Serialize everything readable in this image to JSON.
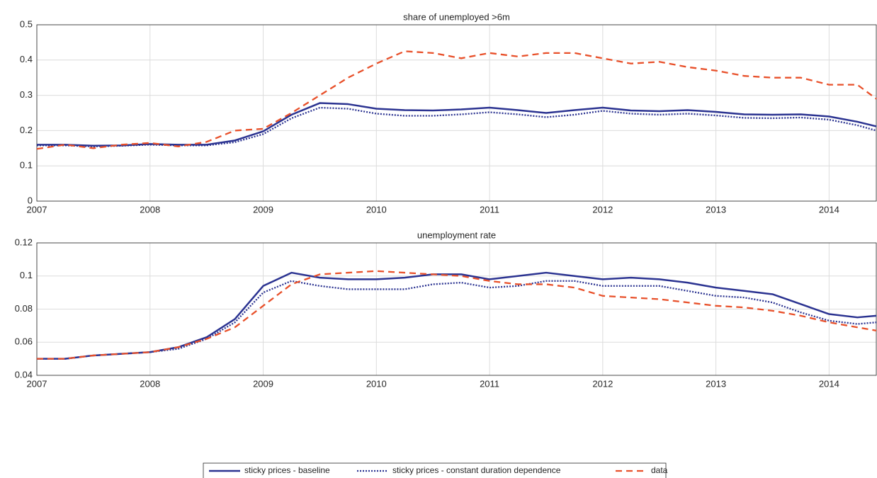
{
  "chart_data": [
    {
      "type": "line",
      "title": "share of unemployed >6m",
      "x": [
        2007,
        2007.25,
        2007.5,
        2007.75,
        2008,
        2008.25,
        2008.5,
        2008.75,
        2009,
        2009.25,
        2009.5,
        2009.75,
        2010,
        2010.25,
        2010.5,
        2010.75,
        2011,
        2011.25,
        2011.5,
        2011.75,
        2012,
        2012.25,
        2012.5,
        2012.75,
        2013,
        2013.25,
        2013.5,
        2013.75,
        2014,
        2014.25,
        2014.417
      ],
      "series": [
        {
          "name": "sticky prices - baseline",
          "color": "#2b3391",
          "linestyle": "solid",
          "values": [
            0.16,
            0.16,
            0.157,
            0.158,
            0.162,
            0.16,
            0.16,
            0.172,
            0.198,
            0.245,
            0.278,
            0.275,
            0.262,
            0.258,
            0.257,
            0.26,
            0.265,
            0.258,
            0.25,
            0.258,
            0.265,
            0.257,
            0.255,
            0.258,
            0.253,
            0.246,
            0.245,
            0.246,
            0.24,
            0.225,
            0.212
          ]
        },
        {
          "name": "sticky prices - constant duration dependence",
          "color": "#2b3391",
          "linestyle": "dotted",
          "values": [
            0.158,
            0.158,
            0.155,
            0.157,
            0.16,
            0.158,
            0.158,
            0.167,
            0.19,
            0.235,
            0.265,
            0.262,
            0.248,
            0.242,
            0.242,
            0.246,
            0.252,
            0.246,
            0.238,
            0.245,
            0.256,
            0.248,
            0.245,
            0.248,
            0.243,
            0.236,
            0.235,
            0.237,
            0.231,
            0.215,
            0.2
          ]
        },
        {
          "name": "data",
          "color": "#e8502a",
          "linestyle": "dashed",
          "values": [
            0.148,
            0.16,
            0.15,
            0.16,
            0.165,
            0.155,
            0.168,
            0.2,
            0.205,
            0.25,
            0.3,
            0.35,
            0.39,
            0.425,
            0.42,
            0.405,
            0.42,
            0.41,
            0.42,
            0.42,
            0.405,
            0.39,
            0.395,
            0.38,
            0.37,
            0.355,
            0.35,
            0.35,
            0.33,
            0.33,
            0.29
          ]
        }
      ],
      "xlim": [
        2007,
        2014.417
      ],
      "xticks": [
        2007,
        2008,
        2009,
        2010,
        2011,
        2012,
        2013,
        2014
      ],
      "ylim": [
        0,
        0.5
      ],
      "yticks": [
        0,
        0.1,
        0.2,
        0.3,
        0.4,
        0.5
      ],
      "grid": true
    },
    {
      "type": "line",
      "title": "unemployment rate",
      "x": [
        2007,
        2007.25,
        2007.5,
        2007.75,
        2008,
        2008.25,
        2008.5,
        2008.75,
        2009,
        2009.25,
        2009.5,
        2009.75,
        2010,
        2010.25,
        2010.5,
        2010.75,
        2011,
        2011.25,
        2011.5,
        2011.75,
        2012,
        2012.25,
        2012.5,
        2012.75,
        2013,
        2013.25,
        2013.5,
        2013.75,
        2014,
        2014.25,
        2014.417
      ],
      "series": [
        {
          "name": "sticky prices - baseline",
          "color": "#2b3391",
          "linestyle": "solid",
          "values": [
            0.05,
            0.05,
            0.052,
            0.053,
            0.054,
            0.057,
            0.063,
            0.074,
            0.094,
            0.102,
            0.099,
            0.098,
            0.098,
            0.099,
            0.101,
            0.101,
            0.098,
            0.1,
            0.102,
            0.1,
            0.098,
            0.099,
            0.098,
            0.096,
            0.093,
            0.091,
            0.089,
            0.083,
            0.077,
            0.075,
            0.076
          ]
        },
        {
          "name": "sticky prices - constant duration dependence",
          "color": "#2b3391",
          "linestyle": "dotted",
          "values": [
            0.05,
            0.05,
            0.052,
            0.053,
            0.054,
            0.056,
            0.062,
            0.072,
            0.09,
            0.097,
            0.094,
            0.092,
            0.092,
            0.092,
            0.095,
            0.096,
            0.093,
            0.094,
            0.097,
            0.097,
            0.094,
            0.094,
            0.094,
            0.091,
            0.088,
            0.087,
            0.084,
            0.078,
            0.073,
            0.071,
            0.072
          ]
        },
        {
          "name": "data",
          "color": "#e8502a",
          "linestyle": "dashed",
          "values": [
            0.05,
            0.05,
            0.052,
            0.053,
            0.054,
            0.057,
            0.062,
            0.069,
            0.082,
            0.095,
            0.101,
            0.102,
            0.103,
            0.102,
            0.101,
            0.1,
            0.097,
            0.095,
            0.095,
            0.093,
            0.088,
            0.087,
            0.086,
            0.084,
            0.082,
            0.081,
            0.079,
            0.076,
            0.072,
            0.069,
            0.067
          ]
        }
      ],
      "xlim": [
        2007,
        2014.417
      ],
      "xticks": [
        2007,
        2008,
        2009,
        2010,
        2011,
        2012,
        2013,
        2014
      ],
      "ylim": [
        0.04,
        0.12
      ],
      "yticks": [
        0.04,
        0.06,
        0.08,
        0.1,
        0.12
      ],
      "grid": true
    }
  ]
}
